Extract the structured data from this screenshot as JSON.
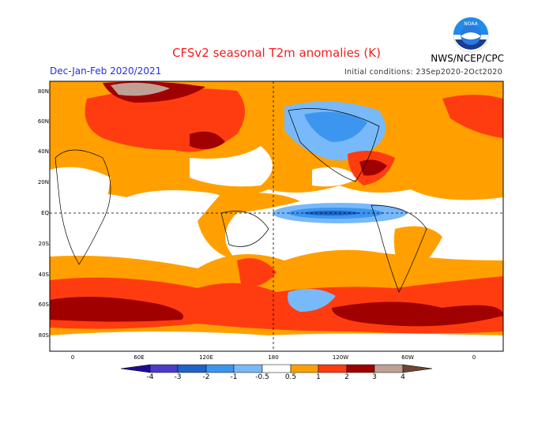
{
  "header": {
    "title": "CFSv2 seasonal T2m anomalies (K)",
    "agency": "NWS/NCEP/CPC",
    "logo_text": "NOAA",
    "season": "Dec-Jan-Feb 2020/2021",
    "initial_conditions": "Initial conditions: 23Sep2020-2Oct2020"
  },
  "map": {
    "lat_labels": [
      "80N",
      "60N",
      "40N",
      "20N",
      "EQ",
      "20S",
      "40S",
      "60S",
      "80S"
    ],
    "lon_labels": [
      "0",
      "60E",
      "120E",
      "180",
      "120W",
      "60W",
      "0"
    ]
  },
  "colorbar": {
    "labels": [
      "-4",
      "-3",
      "-2",
      "-1",
      "-0.5",
      "0.5",
      "1",
      "2",
      "3",
      "4"
    ],
    "colors": [
      "#1c0c96",
      "#4a3cc8",
      "#1e64c8",
      "#3c96f0",
      "#78b9fa",
      "#ffffff",
      "#ffa000",
      "#ff3c10",
      "#a00000",
      "#c0a094",
      "#6e4632"
    ]
  }
}
